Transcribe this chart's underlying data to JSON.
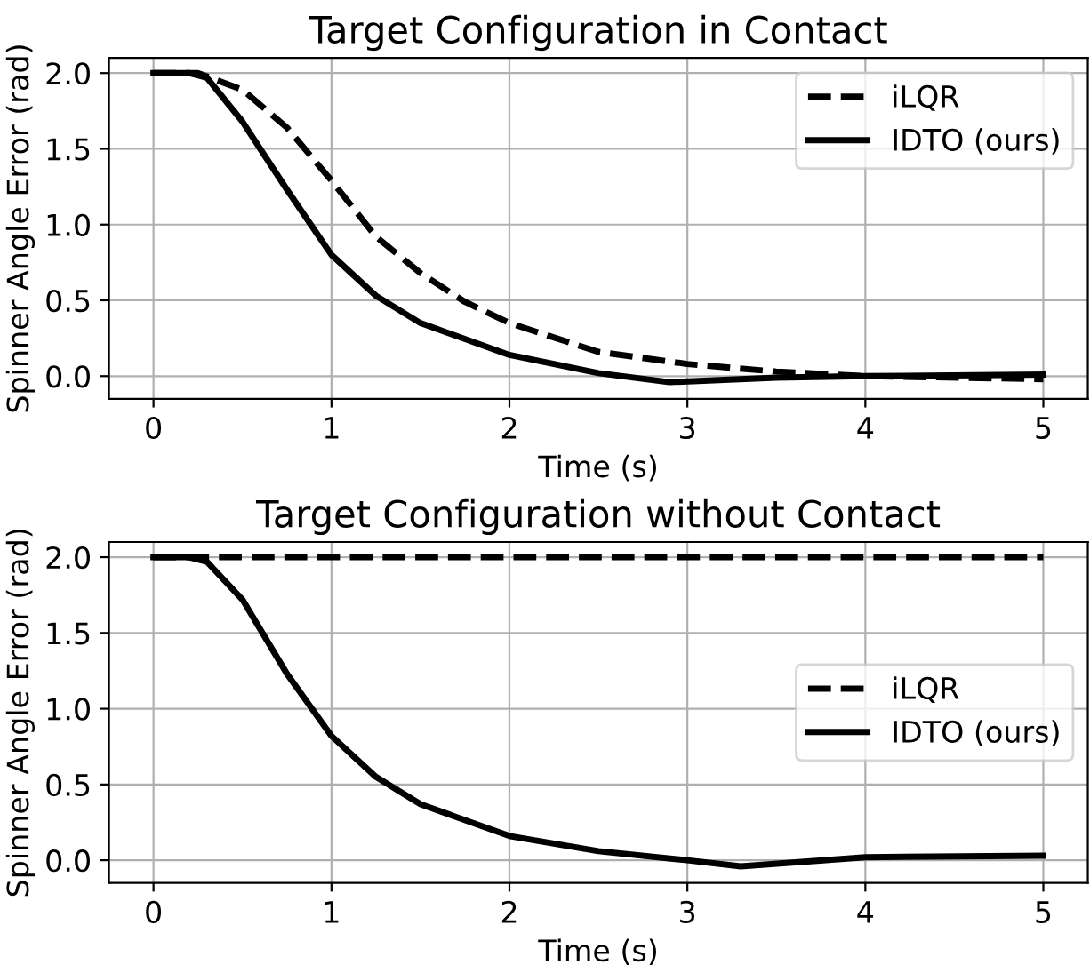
{
  "chart_data": [
    {
      "type": "line",
      "title": "Target Configuration in Contact",
      "xlabel": "Time (s)",
      "ylabel": "Spinner Angle Error (rad)",
      "xlim": [
        -0.25,
        5.25
      ],
      "ylim": [
        -0.15,
        2.1
      ],
      "xticks": [
        0,
        1,
        2,
        3,
        4,
        5
      ],
      "yticks": [
        {
          "value": 0,
          "label": "0.0"
        },
        {
          "value": 0.5,
          "label": "0.5"
        },
        {
          "value": 1,
          "label": "1.0"
        },
        {
          "value": 1.5,
          "label": "1.5"
        },
        {
          "value": 2,
          "label": "2.0"
        }
      ],
      "grid": true,
      "legend": "top right",
      "series": [
        {
          "name": "iLQR",
          "color": "#000000",
          "line_style": "dashed",
          "x": [
            0,
            0.25,
            0.5,
            0.75,
            1,
            1.25,
            1.5,
            1.75,
            2,
            2.5,
            3,
            3.5,
            4,
            5
          ],
          "values": [
            2.0,
            2.0,
            1.89,
            1.64,
            1.29,
            0.92,
            0.68,
            0.49,
            0.35,
            0.16,
            0.08,
            0.03,
            0.0,
            -0.02
          ]
        },
        {
          "name": "IDTO (ours)",
          "color": "#000000",
          "line_style": "solid",
          "x": [
            0,
            0.2,
            0.3,
            0.5,
            0.75,
            1,
            1.25,
            1.5,
            2,
            2.5,
            2.9,
            3.5,
            4,
            5
          ],
          "values": [
            2.0,
            2.0,
            1.97,
            1.68,
            1.23,
            0.8,
            0.53,
            0.35,
            0.14,
            0.02,
            -0.04,
            -0.01,
            0.0,
            0.01
          ]
        }
      ]
    },
    {
      "type": "line",
      "title": "Target Configuration without Contact",
      "xlabel": "Time (s)",
      "ylabel": "Spinner Angle Error (rad)",
      "xlim": [
        -0.25,
        5.25
      ],
      "ylim": [
        -0.15,
        2.1
      ],
      "xticks": [
        0,
        1,
        2,
        3,
        4,
        5
      ],
      "yticks": [
        {
          "value": 0,
          "label": "0.0"
        },
        {
          "value": 0.5,
          "label": "0.5"
        },
        {
          "value": 1,
          "label": "1.0"
        },
        {
          "value": 1.5,
          "label": "1.5"
        },
        {
          "value": 2,
          "label": "2.0"
        }
      ],
      "grid": true,
      "legend": "right",
      "series": [
        {
          "name": "iLQR",
          "color": "#000000",
          "line_style": "dashed",
          "x": [
            0,
            5
          ],
          "values": [
            2.0,
            2.0
          ]
        },
        {
          "name": "IDTO (ours)",
          "color": "#000000",
          "line_style": "solid",
          "x": [
            0,
            0.2,
            0.3,
            0.5,
            0.75,
            1,
            1.25,
            1.5,
            2,
            2.5,
            3,
            3.3,
            4,
            5
          ],
          "values": [
            2.0,
            2.0,
            1.97,
            1.72,
            1.23,
            0.82,
            0.55,
            0.37,
            0.16,
            0.06,
            0.0,
            -0.04,
            0.02,
            0.03
          ]
        }
      ]
    }
  ]
}
